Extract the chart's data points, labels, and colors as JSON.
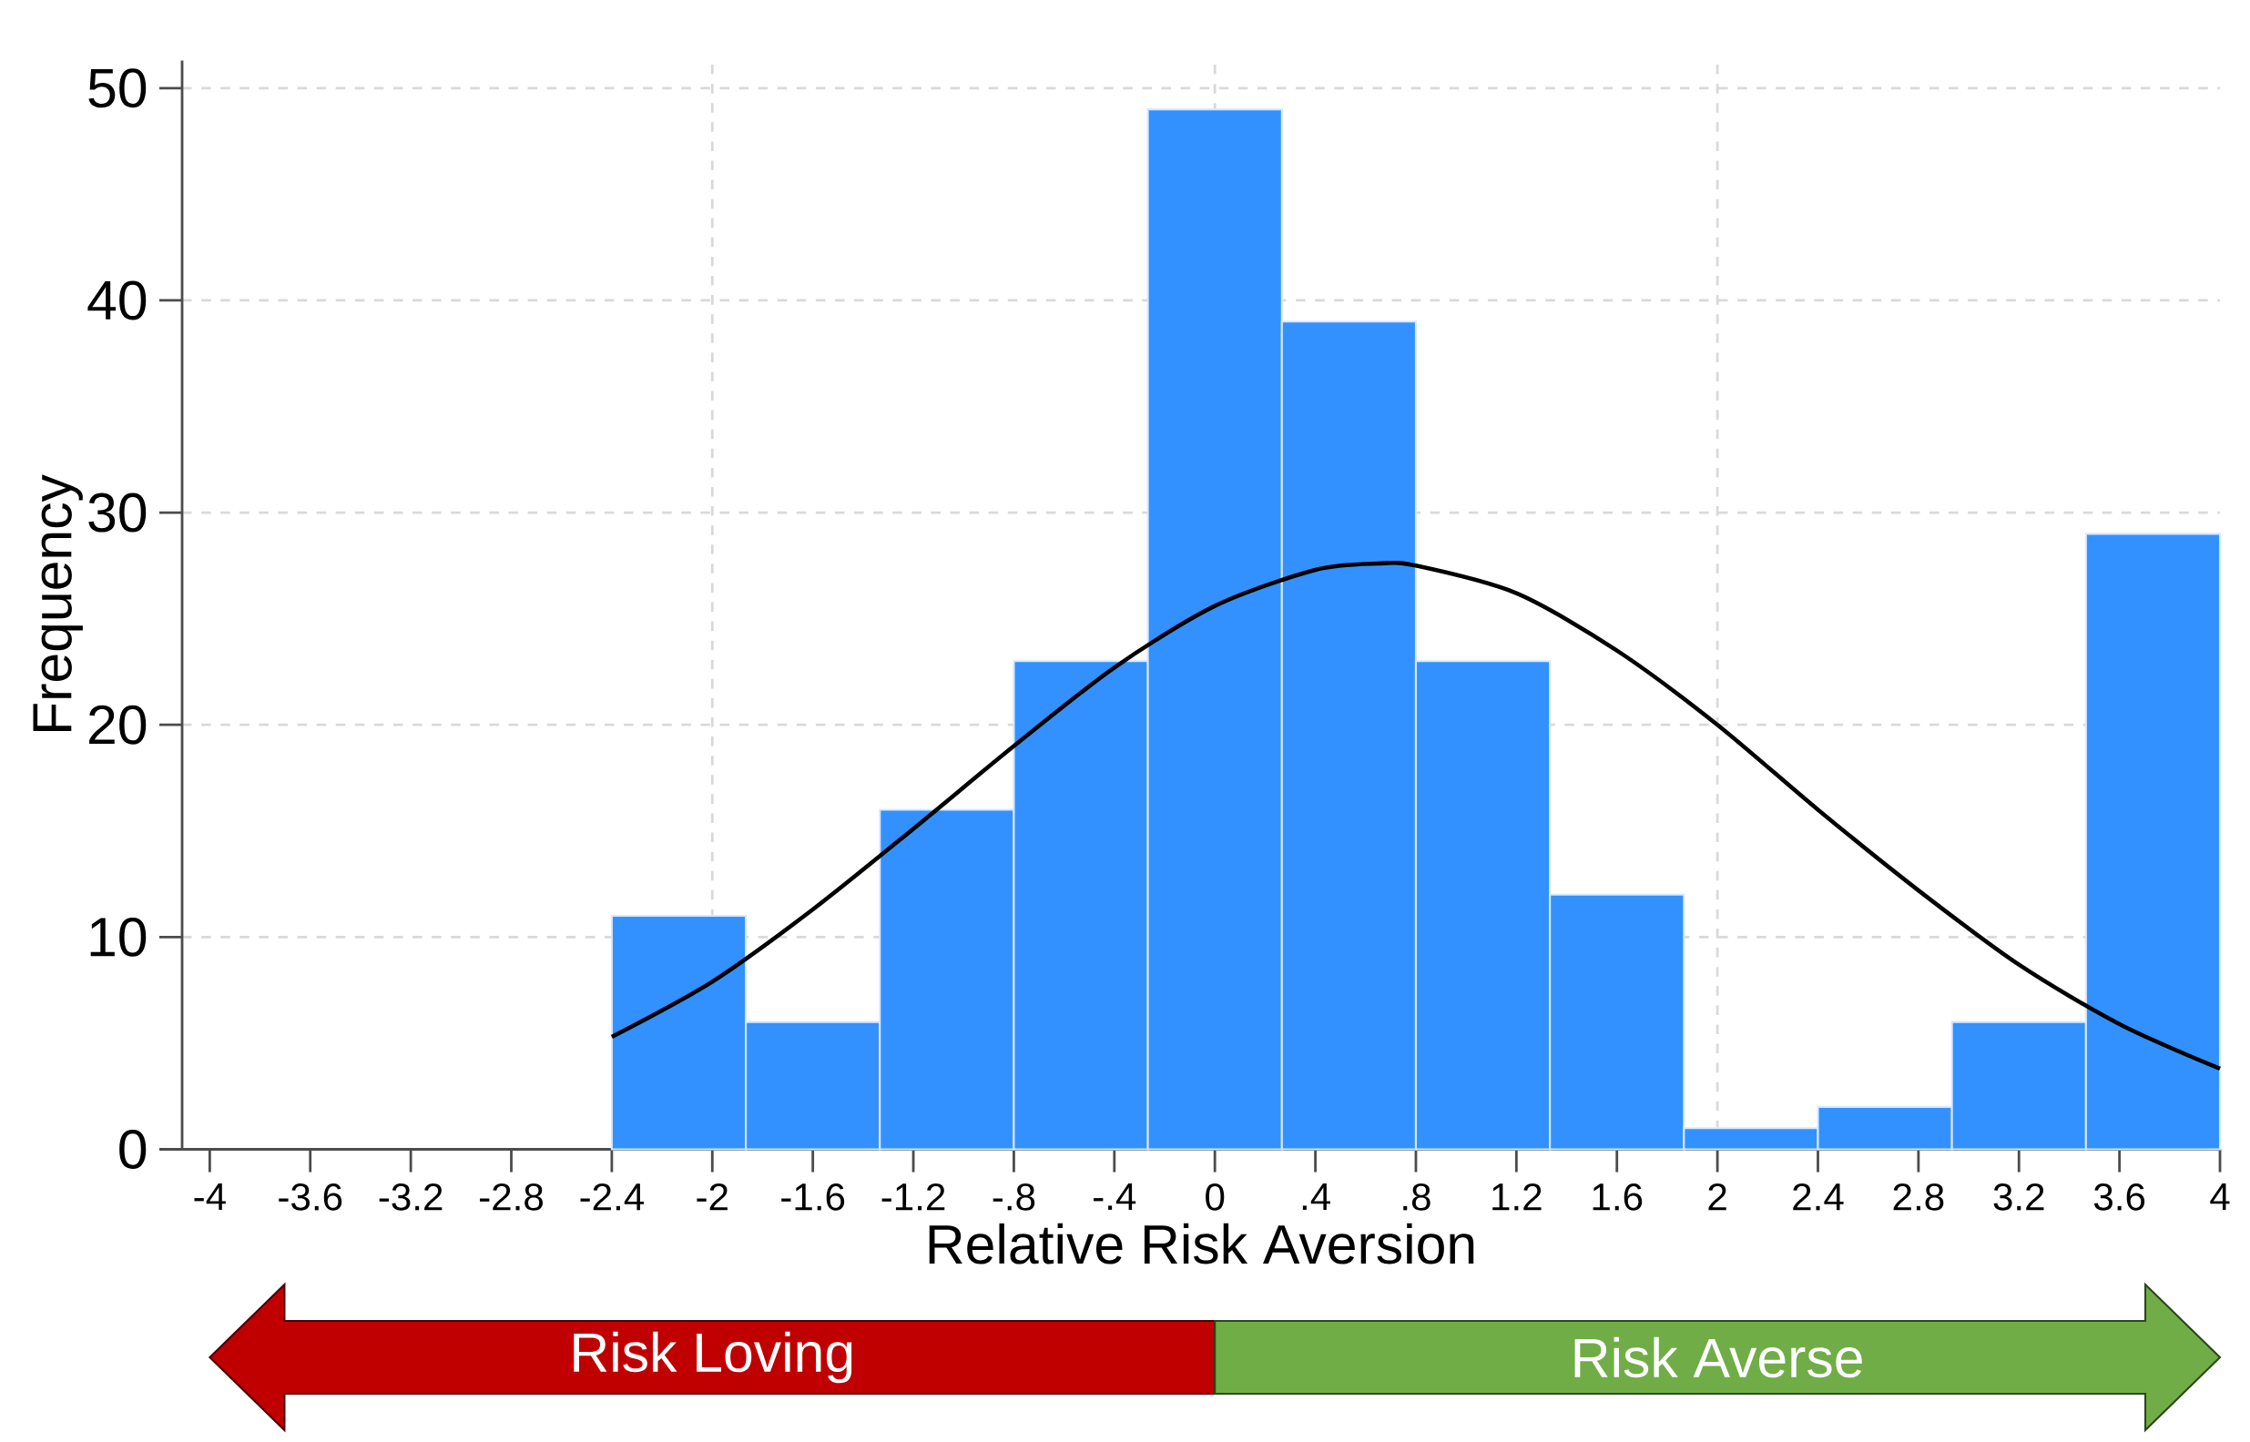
{
  "chart_data": {
    "type": "histogram",
    "xlabel": "Relative Risk Aversion",
    "ylabel": "Frequency",
    "bins": [
      -2.4,
      -1.8667,
      -1.3333,
      -0.8,
      -0.2667,
      0.2667,
      0.8,
      1.3333,
      1.8667,
      2.4,
      2.9333,
      3.4667,
      4.0
    ],
    "values": [
      11,
      6,
      16,
      23,
      49,
      39,
      23,
      12,
      1,
      2,
      6,
      29
    ],
    "color": "#3391ff",
    "series": [
      {
        "type": "line",
        "color": "#000000",
        "x": [
          -2.4,
          -2.0,
          -1.6,
          -1.2,
          -0.8,
          -0.4,
          0,
          0.4,
          0.65,
          0.8,
          1.2,
          1.6,
          2.0,
          2.4,
          2.8,
          3.2,
          3.6,
          4.0
        ],
        "values": [
          5.3,
          7.9,
          11.3,
          15.1,
          19.0,
          22.7,
          25.6,
          27.3,
          27.6,
          27.5,
          26.2,
          23.5,
          20.0,
          16.0,
          12.2,
          8.7,
          5.9,
          3.8
        ]
      }
    ],
    "xlim": [
      -4.11,
      4
    ],
    "ylim": [
      0,
      51.3
    ],
    "xticks": [
      -4,
      {
        "value": -3.6,
        "label": "-3.6"
      },
      {
        "value": -3.2,
        "label": "-3.2"
      },
      {
        "value": -2.8,
        "label": "-2.8"
      },
      {
        "value": -2.4,
        "label": "-2.4"
      },
      -2,
      {
        "value": -1.6,
        "label": "-1.6"
      },
      {
        "value": -1.2,
        "label": "-1.2"
      },
      {
        "value": -0.8,
        "label": "-.8"
      },
      {
        "value": -0.4,
        "label": "-.4"
      },
      0,
      {
        "value": 0.4,
        "label": ".4"
      },
      {
        "value": 0.8,
        "label": ".8"
      },
      {
        "value": 1.2,
        "label": "1.2"
      },
      {
        "value": 1.6,
        "label": "1.6"
      },
      2,
      {
        "value": 2.4,
        "label": "2.4"
      },
      {
        "value": 2.8,
        "label": "2.8"
      },
      {
        "value": 3.2,
        "label": "3.2"
      },
      {
        "value": 3.6,
        "label": "3.6"
      },
      4
    ],
    "yticks": [
      0,
      10,
      20,
      30,
      40,
      50
    ],
    "grid": true,
    "annotations": [
      "Risk Loving",
      "Risk Averse"
    ]
  }
}
